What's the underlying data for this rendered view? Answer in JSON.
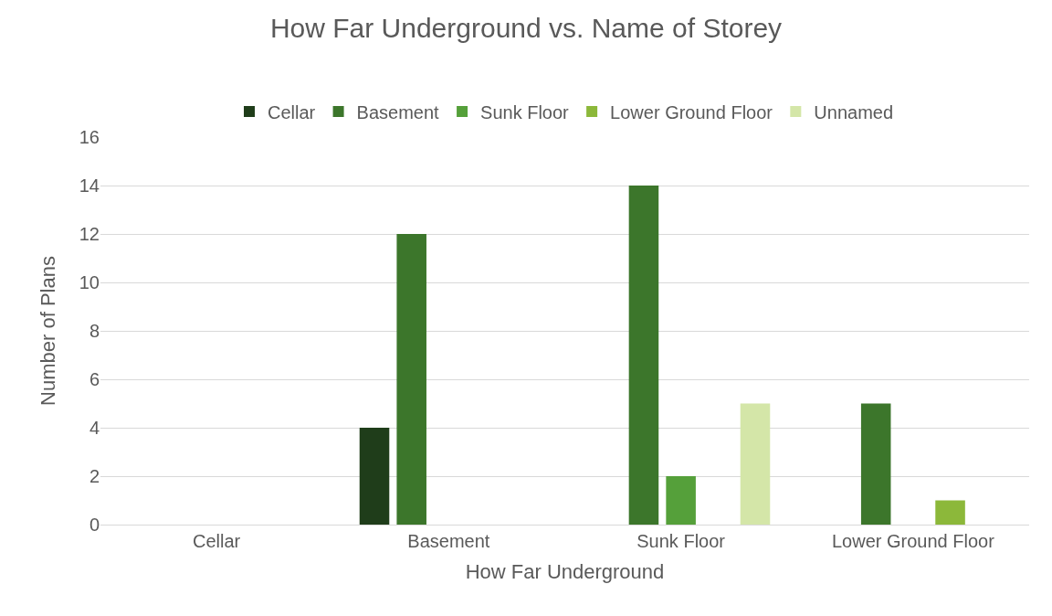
{
  "chart_data": {
    "type": "bar",
    "title": "How Far Underground vs. Name of Storey",
    "xlabel": "How Far Underground",
    "ylabel": "Number of Plans",
    "categories": [
      "Cellar",
      "Basement",
      "Sunk Floor",
      "Lower Ground Floor"
    ],
    "series": [
      {
        "name": "Cellar",
        "color": "#1f3d1a",
        "values": [
          0,
          4,
          0,
          0
        ]
      },
      {
        "name": "Basement",
        "color": "#3c762b",
        "values": [
          0,
          12,
          14,
          5
        ]
      },
      {
        "name": "Sunk Floor",
        "color": "#55a03a",
        "values": [
          0,
          0,
          2,
          0
        ]
      },
      {
        "name": "Lower Ground Floor",
        "color": "#8cb83a",
        "values": [
          0,
          0,
          0,
          1
        ]
      },
      {
        "name": "Unnamed",
        "color": "#d4e6a8",
        "values": [
          0,
          0,
          5,
          0
        ]
      }
    ],
    "ylim": [
      0,
      16
    ],
    "yticks": [
      0,
      2,
      4,
      6,
      8,
      10,
      12,
      14,
      16
    ],
    "grid": "y",
    "legend": "top"
  }
}
